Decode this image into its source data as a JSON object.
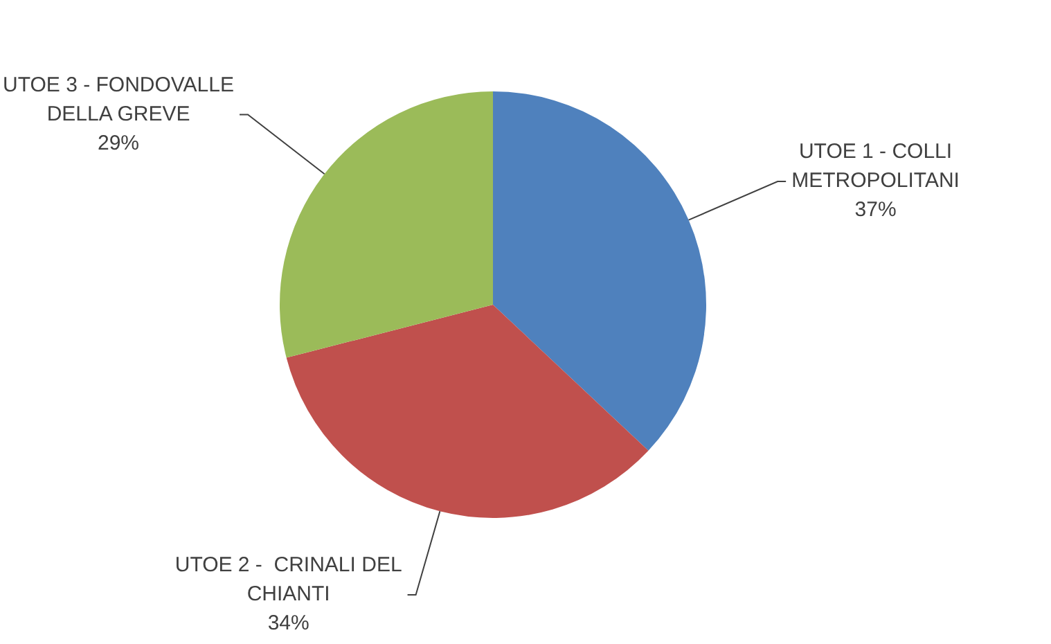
{
  "chart_data": {
    "type": "pie",
    "categories": [
      "UTOE 1 - COLLI METROPOLITANI",
      "UTOE 2 -  CRINALI DEL CHIANTI",
      "UTOE 3 - FONDOVALLE DELLA GREVE"
    ],
    "values": [
      37,
      34,
      29
    ],
    "colors": [
      "#4f81bd",
      "#c0504d",
      "#9bbb59"
    ],
    "value_labels": [
      "37%",
      "34%",
      "29%"
    ],
    "legend": false
  }
}
